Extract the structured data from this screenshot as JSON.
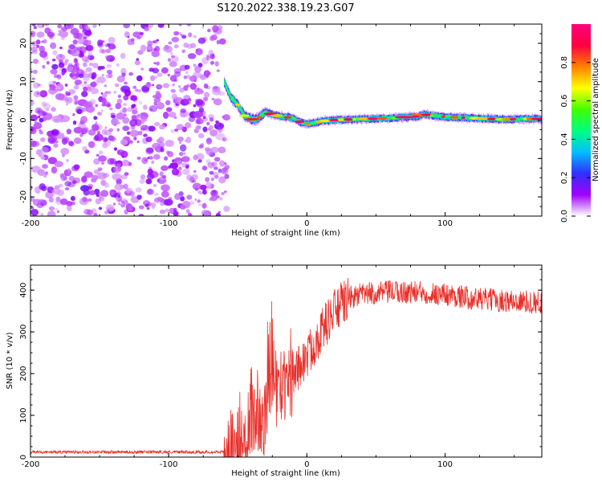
{
  "title": "S120.2022.338.19.23.G07",
  "chart_data": [
    {
      "type": "heatmap",
      "name": "spectrogram",
      "xlabel": "Height of straight line (km)",
      "ylabel": "Frequency (Hz)",
      "xlim": [
        -200,
        170
      ],
      "ylim": [
        -25,
        25
      ],
      "xticks": [
        -200,
        -100,
        0,
        100
      ],
      "xtick_labels": [
        "-200",
        "-100",
        "0",
        "100"
      ],
      "yticks": [
        -20,
        -10,
        0,
        10,
        20
      ],
      "ytick_labels": [
        "-20",
        "-10",
        "0",
        "10",
        "20"
      ],
      "noise_region_x": [
        -200,
        -60
      ],
      "signal_trace": {
        "x": [
          -60,
          -55,
          -50,
          -45,
          -42,
          -38,
          -35,
          -30,
          -25,
          -20,
          -15,
          -10,
          -5,
          0,
          5,
          10,
          20,
          40,
          60,
          80,
          85,
          90,
          100,
          120,
          140,
          160,
          170
        ],
        "freq": [
          10,
          6,
          4,
          1,
          0.5,
          0,
          0.5,
          2,
          1.5,
          1,
          0.8,
          0.5,
          -0.5,
          -1,
          -0.8,
          -0.3,
          0,
          0.3,
          0.5,
          1,
          1.5,
          1.2,
          0.8,
          0.5,
          0.2,
          0.3,
          0.3
        ]
      },
      "colorbar": {
        "label": "Normalized spectral amplitude",
        "range": [
          0,
          1
        ],
        "ticks": [
          0.0,
          0.2,
          0.4,
          0.6,
          0.8
        ],
        "tick_labels": [
          "0.0",
          "0.2",
          "0.4",
          "0.6",
          "0.8"
        ],
        "colormap": [
          "#ffffff",
          "#a000ff",
          "#3030ff",
          "#00c0ff",
          "#00ff80",
          "#40ff00",
          "#ffff00",
          "#ff8000",
          "#ff0040",
          "#ff0080"
        ]
      }
    },
    {
      "type": "line",
      "name": "snr",
      "xlabel": "Height of straight line (km)",
      "ylabel": "SNR (10 * v/v)",
      "xlim": [
        -200,
        170
      ],
      "ylim": [
        0,
        460
      ],
      "xticks": [
        -200,
        -100,
        0,
        100
      ],
      "xtick_labels": [
        "-200",
        "-100",
        "0",
        "100"
      ],
      "yticks": [
        0,
        100,
        200,
        300,
        400
      ],
      "ytick_labels": [
        "0",
        "100",
        "200",
        "300",
        "400"
      ],
      "series": [
        {
          "name": "SNR",
          "color": "#e8302a",
          "envelope_x": [
            -200,
            -60,
            -50,
            -45,
            -40,
            -35,
            -30,
            -25,
            -20,
            -10,
            0,
            10,
            20,
            30,
            40,
            60,
            80,
            100,
            120,
            140,
            170
          ],
          "envelope_y": [
            12,
            12,
            20,
            50,
            90,
            110,
            120,
            150,
            170,
            200,
            240,
            300,
            350,
            380,
            390,
            395,
            395,
            390,
            380,
            375,
            370
          ]
        }
      ]
    }
  ]
}
